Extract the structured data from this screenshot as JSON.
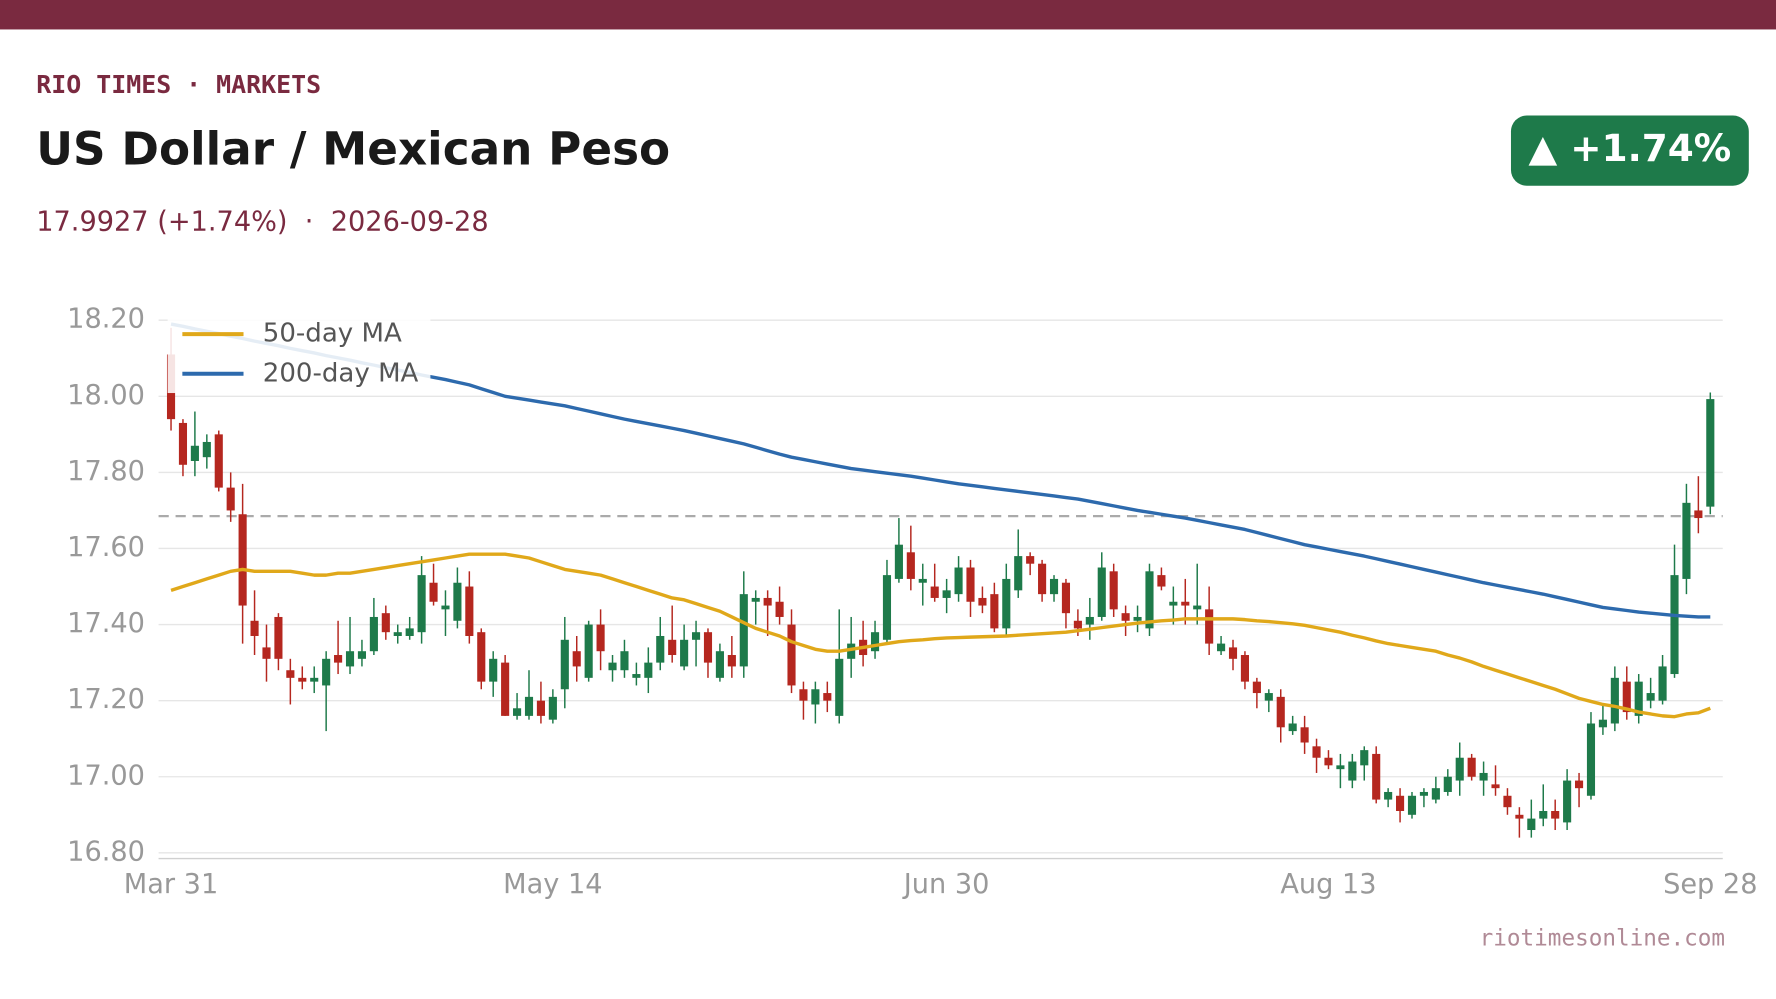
{
  "header": {
    "kicker": "RIO TIMES · MARKETS",
    "title": "US Dollar / Mexican Peso",
    "subtitle": "17.9927 (+1.74%)  ·  2026-09-28",
    "badge": "▲ +1.74%",
    "source": "riotimesonline.com"
  },
  "chart_data": {
    "type": "candlestick",
    "categories": [
      "Mar 31",
      null,
      null,
      null,
      null,
      null,
      null,
      null,
      null,
      null,
      null,
      null,
      null,
      null,
      null,
      null,
      null,
      null,
      null,
      null,
      null,
      null,
      null,
      null,
      null,
      null,
      null,
      null,
      null,
      null,
      null,
      null,
      "May 14",
      null,
      null,
      null,
      null,
      null,
      null,
      null,
      null,
      null,
      null,
      null,
      null,
      null,
      null,
      null,
      null,
      null,
      null,
      null,
      null,
      null,
      null,
      null,
      null,
      null,
      null,
      null,
      null,
      null,
      null,
      null,
      null,
      "Jun 30",
      null,
      null,
      null,
      null,
      null,
      null,
      null,
      null,
      null,
      null,
      null,
      null,
      null,
      null,
      null,
      null,
      null,
      null,
      null,
      null,
      null,
      null,
      null,
      null,
      null,
      null,
      null,
      null,
      null,
      null,
      null,
      "Aug 13",
      null,
      null,
      null,
      null,
      null,
      null,
      null,
      null,
      null,
      null,
      null,
      null,
      null,
      null,
      null,
      null,
      null,
      null,
      null,
      null,
      null,
      null,
      null,
      null,
      null,
      null,
      null,
      null,
      null,
      null,
      null,
      "Sep 28"
    ],
    "open": [
      18.11,
      17.93,
      17.83,
      17.84,
      17.9,
      17.76,
      17.69,
      17.41,
      17.34,
      17.42,
      17.28,
      17.26,
      17.25,
      17.24,
      17.32,
      17.29,
      17.31,
      17.33,
      17.43,
      17.37,
      17.37,
      17.38,
      17.51,
      17.44,
      17.41,
      17.5,
      17.38,
      17.25,
      17.3,
      17.16,
      17.16,
      17.2,
      17.15,
      17.23,
      17.33,
      17.26,
      17.4,
      17.28,
      17.28,
      17.26,
      17.26,
      17.3,
      17.36,
      17.29,
      17.36,
      17.38,
      17.26,
      17.32,
      17.29,
      17.46,
      17.47,
      17.46,
      17.4,
      17.23,
      17.19,
      17.22,
      17.16,
      17.31,
      17.36,
      17.33,
      17.36,
      17.52,
      17.59,
      17.51,
      17.5,
      17.47,
      17.48,
      17.55,
      17.47,
      17.48,
      17.39,
      17.49,
      17.58,
      17.56,
      17.48,
      17.51,
      17.41,
      17.4,
      17.42,
      17.54,
      17.43,
      17.41,
      17.39,
      17.53,
      17.45,
      17.46,
      17.44,
      17.44,
      17.33,
      17.34,
      17.32,
      17.25,
      17.2,
      17.21,
      17.12,
      17.13,
      17.08,
      17.05,
      17.02,
      16.99,
      17.03,
      17.06,
      16.94,
      16.95,
      16.9,
      16.95,
      16.94,
      16.96,
      16.99,
      17.05,
      16.99,
      16.98,
      16.95,
      16.9,
      16.86,
      16.89,
      16.91,
      16.88,
      16.99,
      16.95,
      17.13,
      17.14,
      17.25,
      17.16,
      17.2,
      17.2,
      17.27,
      17.52,
      17.7,
      17.71
    ],
    "high": [
      18.18,
      17.94,
      17.96,
      17.9,
      17.91,
      17.8,
      17.77,
      17.49,
      17.4,
      17.43,
      17.31,
      17.29,
      17.29,
      17.33,
      17.41,
      17.42,
      17.36,
      17.47,
      17.45,
      17.4,
      17.42,
      17.58,
      17.56,
      17.49,
      17.55,
      17.54,
      17.39,
      17.33,
      17.32,
      17.22,
      17.28,
      17.25,
      17.23,
      17.42,
      17.37,
      17.41,
      17.44,
      17.32,
      17.36,
      17.3,
      17.34,
      17.42,
      17.45,
      17.4,
      17.41,
      17.39,
      17.35,
      17.37,
      17.54,
      17.49,
      17.49,
      17.5,
      17.44,
      17.25,
      17.25,
      17.25,
      17.44,
      17.42,
      17.41,
      17.41,
      17.57,
      17.68,
      17.66,
      17.56,
      17.56,
      17.52,
      17.58,
      17.57,
      17.5,
      17.51,
      17.56,
      17.65,
      17.59,
      17.57,
      17.53,
      17.52,
      17.44,
      17.47,
      17.59,
      17.56,
      17.45,
      17.45,
      17.56,
      17.55,
      17.5,
      17.52,
      17.56,
      17.5,
      17.37,
      17.36,
      17.33,
      17.26,
      17.23,
      17.23,
      17.16,
      17.16,
      17.1,
      17.07,
      17.06,
      17.06,
      17.08,
      17.08,
      16.97,
      16.97,
      16.96,
      16.97,
      17.0,
      17.02,
      17.09,
      17.06,
      17.04,
      17.03,
      16.97,
      16.92,
      16.94,
      16.98,
      16.94,
      17.02,
      17.01,
      17.17,
      17.19,
      17.29,
      17.29,
      17.27,
      17.26,
      17.32,
      17.61,
      17.77,
      17.79,
      18.01
    ],
    "low": [
      17.91,
      17.79,
      17.79,
      17.81,
      17.75,
      17.67,
      17.35,
      17.32,
      17.25,
      17.28,
      17.19,
      17.23,
      17.22,
      17.12,
      17.27,
      17.27,
      17.29,
      17.32,
      17.36,
      17.35,
      17.36,
      17.35,
      17.45,
      17.37,
      17.39,
      17.35,
      17.23,
      17.21,
      17.16,
      17.15,
      17.15,
      17.14,
      17.14,
      17.18,
      17.25,
      17.25,
      17.28,
      17.25,
      17.26,
      17.24,
      17.22,
      17.28,
      17.3,
      17.28,
      17.29,
      17.26,
      17.25,
      17.26,
      17.26,
      17.4,
      17.37,
      17.4,
      17.22,
      17.15,
      17.14,
      17.17,
      17.14,
      17.26,
      17.29,
      17.31,
      17.35,
      17.51,
      17.49,
      17.45,
      17.46,
      17.43,
      17.46,
      17.42,
      17.43,
      17.38,
      17.37,
      17.47,
      17.53,
      17.46,
      17.46,
      17.39,
      17.37,
      17.36,
      17.41,
      17.42,
      17.37,
      17.38,
      17.37,
      17.49,
      17.4,
      17.4,
      17.4,
      17.32,
      17.32,
      17.28,
      17.23,
      17.18,
      17.17,
      17.09,
      17.11,
      17.06,
      17.01,
      17.02,
      16.97,
      16.97,
      16.99,
      16.93,
      16.92,
      16.88,
      16.89,
      16.92,
      16.93,
      16.95,
      16.95,
      16.99,
      16.95,
      16.95,
      16.9,
      16.84,
      16.84,
      16.87,
      16.86,
      16.86,
      16.92,
      16.94,
      17.11,
      17.12,
      17.15,
      17.14,
      17.18,
      17.19,
      17.26,
      17.48,
      17.64,
      17.69
    ],
    "close": [
      17.94,
      17.82,
      17.87,
      17.88,
      17.76,
      17.7,
      17.45,
      17.37,
      17.31,
      17.31,
      17.26,
      17.25,
      17.26,
      17.31,
      17.3,
      17.33,
      17.33,
      17.42,
      17.38,
      17.38,
      17.39,
      17.53,
      17.46,
      17.45,
      17.51,
      17.37,
      17.25,
      17.31,
      17.16,
      17.18,
      17.21,
      17.16,
      17.21,
      17.36,
      17.29,
      17.4,
      17.33,
      17.3,
      17.33,
      17.27,
      17.3,
      17.37,
      17.32,
      17.36,
      17.38,
      17.3,
      17.33,
      17.29,
      17.48,
      17.47,
      17.45,
      17.42,
      17.24,
      17.2,
      17.23,
      17.2,
      17.31,
      17.35,
      17.32,
      17.38,
      17.53,
      17.61,
      17.52,
      17.52,
      17.47,
      17.49,
      17.55,
      17.46,
      17.45,
      17.39,
      17.52,
      17.58,
      17.56,
      17.48,
      17.52,
      17.43,
      17.39,
      17.42,
      17.55,
      17.44,
      17.41,
      17.42,
      17.54,
      17.5,
      17.46,
      17.45,
      17.45,
      17.35,
      17.35,
      17.31,
      17.25,
      17.22,
      17.22,
      17.13,
      17.14,
      17.09,
      17.05,
      17.03,
      17.03,
      17.04,
      17.07,
      16.94,
      16.96,
      16.91,
      16.95,
      16.96,
      16.97,
      17.0,
      17.05,
      17.0,
      17.01,
      16.97,
      16.92,
      16.89,
      16.89,
      16.91,
      16.89,
      16.99,
      16.97,
      17.14,
      17.15,
      17.26,
      17.17,
      17.25,
      17.22,
      17.29,
      17.53,
      17.72,
      17.68,
      17.9927
    ],
    "up_color": "#1e7a4a",
    "down_color": "#b5271f",
    "series": [
      {
        "name": "50-day MA",
        "color": "#e0a81a",
        "values": [
          17.49,
          17.5,
          17.51,
          17.52,
          17.53,
          17.54,
          17.545,
          17.54,
          17.54,
          17.54,
          17.54,
          17.535,
          17.53,
          17.53,
          17.535,
          17.535,
          17.54,
          17.545,
          17.55,
          17.555,
          17.56,
          17.565,
          17.57,
          17.575,
          17.58,
          17.585,
          17.585,
          17.585,
          17.585,
          17.58,
          17.575,
          17.565,
          17.555,
          17.545,
          17.54,
          17.535,
          17.53,
          17.52,
          17.51,
          17.5,
          17.49,
          17.48,
          17.47,
          17.465,
          17.455,
          17.445,
          17.435,
          17.42,
          17.405,
          17.39,
          17.38,
          17.37,
          17.355,
          17.345,
          17.335,
          17.33,
          17.33,
          17.335,
          17.34,
          17.345,
          17.35,
          17.355,
          17.358,
          17.36,
          17.363,
          17.365,
          17.366,
          17.367,
          17.368,
          17.369,
          17.37,
          17.372,
          17.374,
          17.376,
          17.378,
          17.38,
          17.384,
          17.388,
          17.392,
          17.396,
          17.4,
          17.404,
          17.407,
          17.41,
          17.412,
          17.415,
          17.415,
          17.415,
          17.415,
          17.415,
          17.413,
          17.41,
          17.408,
          17.405,
          17.402,
          17.398,
          17.392,
          17.386,
          17.38,
          17.372,
          17.365,
          17.357,
          17.35,
          17.345,
          17.34,
          17.335,
          17.33,
          17.32,
          17.312,
          17.302,
          17.29,
          17.28,
          17.27,
          17.26,
          17.25,
          17.24,
          17.23,
          17.218,
          17.206,
          17.198,
          17.19,
          17.185,
          17.178,
          17.17,
          17.165,
          17.16,
          17.158,
          17.165,
          17.168,
          17.18
        ]
      },
      {
        "name": "200-day MA",
        "color": "#2d6aad",
        "values": [
          18.19,
          18.184,
          18.177,
          18.171,
          18.165,
          18.158,
          18.152,
          18.145,
          18.139,
          18.133,
          18.126,
          18.12,
          18.114,
          18.107,
          18.101,
          18.095,
          18.088,
          18.082,
          18.075,
          18.069,
          18.063,
          18.056,
          18.05,
          18.044,
          18.037,
          18.03,
          18.02,
          18.01,
          18.0,
          17.995,
          17.99,
          17.985,
          17.98,
          17.975,
          17.968,
          17.961,
          17.954,
          17.947,
          17.94,
          17.934,
          17.928,
          17.922,
          17.916,
          17.91,
          17.903,
          17.896,
          17.889,
          17.882,
          17.875,
          17.866,
          17.857,
          17.848,
          17.84,
          17.834,
          17.828,
          17.822,
          17.816,
          17.81,
          17.806,
          17.802,
          17.798,
          17.794,
          17.79,
          17.785,
          17.78,
          17.775,
          17.77,
          17.766,
          17.762,
          17.758,
          17.754,
          17.75,
          17.746,
          17.742,
          17.738,
          17.734,
          17.73,
          17.724,
          17.718,
          17.712,
          17.706,
          17.7,
          17.695,
          17.69,
          17.685,
          17.68,
          17.674,
          17.668,
          17.662,
          17.656,
          17.65,
          17.642,
          17.634,
          17.626,
          17.618,
          17.61,
          17.604,
          17.598,
          17.592,
          17.586,
          17.58,
          17.573,
          17.566,
          17.559,
          17.552,
          17.545,
          17.538,
          17.531,
          17.524,
          17.517,
          17.51,
          17.504,
          17.498,
          17.492,
          17.486,
          17.48,
          17.473,
          17.466,
          17.459,
          17.452,
          17.445,
          17.441,
          17.437,
          17.433,
          17.43,
          17.427,
          17.424,
          17.422,
          17.42,
          17.42
        ]
      }
    ],
    "reference_line": 17.685,
    "ylim": [
      16.785,
      18.22
    ],
    "yticks": [
      {
        "value": 16.8,
        "label": "16.80"
      },
      {
        "value": 17.0,
        "label": "17.00"
      },
      {
        "value": 17.2,
        "label": "17.20"
      },
      {
        "value": 17.4,
        "label": "17.40"
      },
      {
        "value": 17.6,
        "label": "17.60"
      },
      {
        "value": 17.8,
        "label": "17.80"
      },
      {
        "value": 18.0,
        "label": "18.00"
      },
      {
        "value": 18.2,
        "label": "18.20"
      }
    ],
    "grid": true,
    "legend": "upper left"
  }
}
